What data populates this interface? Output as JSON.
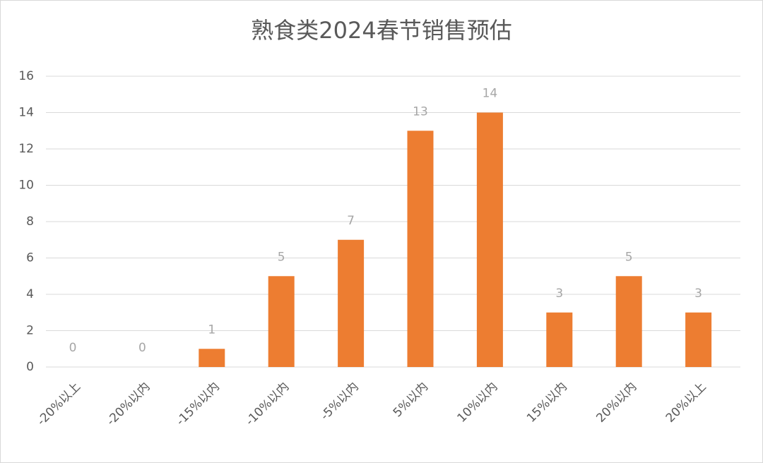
{
  "chart_data": {
    "type": "bar",
    "title": "熟食类2024春节销售预估",
    "categories": [
      "-20%以上",
      "-20%以内",
      "-15%以内",
      "-10%以内",
      "-5%以内",
      "5%以内",
      "10%以内",
      "15%以内",
      "20%以内",
      "20%以上"
    ],
    "values": [
      0,
      0,
      1,
      5,
      7,
      13,
      14,
      3,
      5,
      3
    ],
    "color": "#ed7d31",
    "ylim": [
      0,
      16
    ],
    "yticks": [
      0,
      2,
      4,
      6,
      8,
      10,
      12,
      14,
      16
    ],
    "grid": true
  }
}
